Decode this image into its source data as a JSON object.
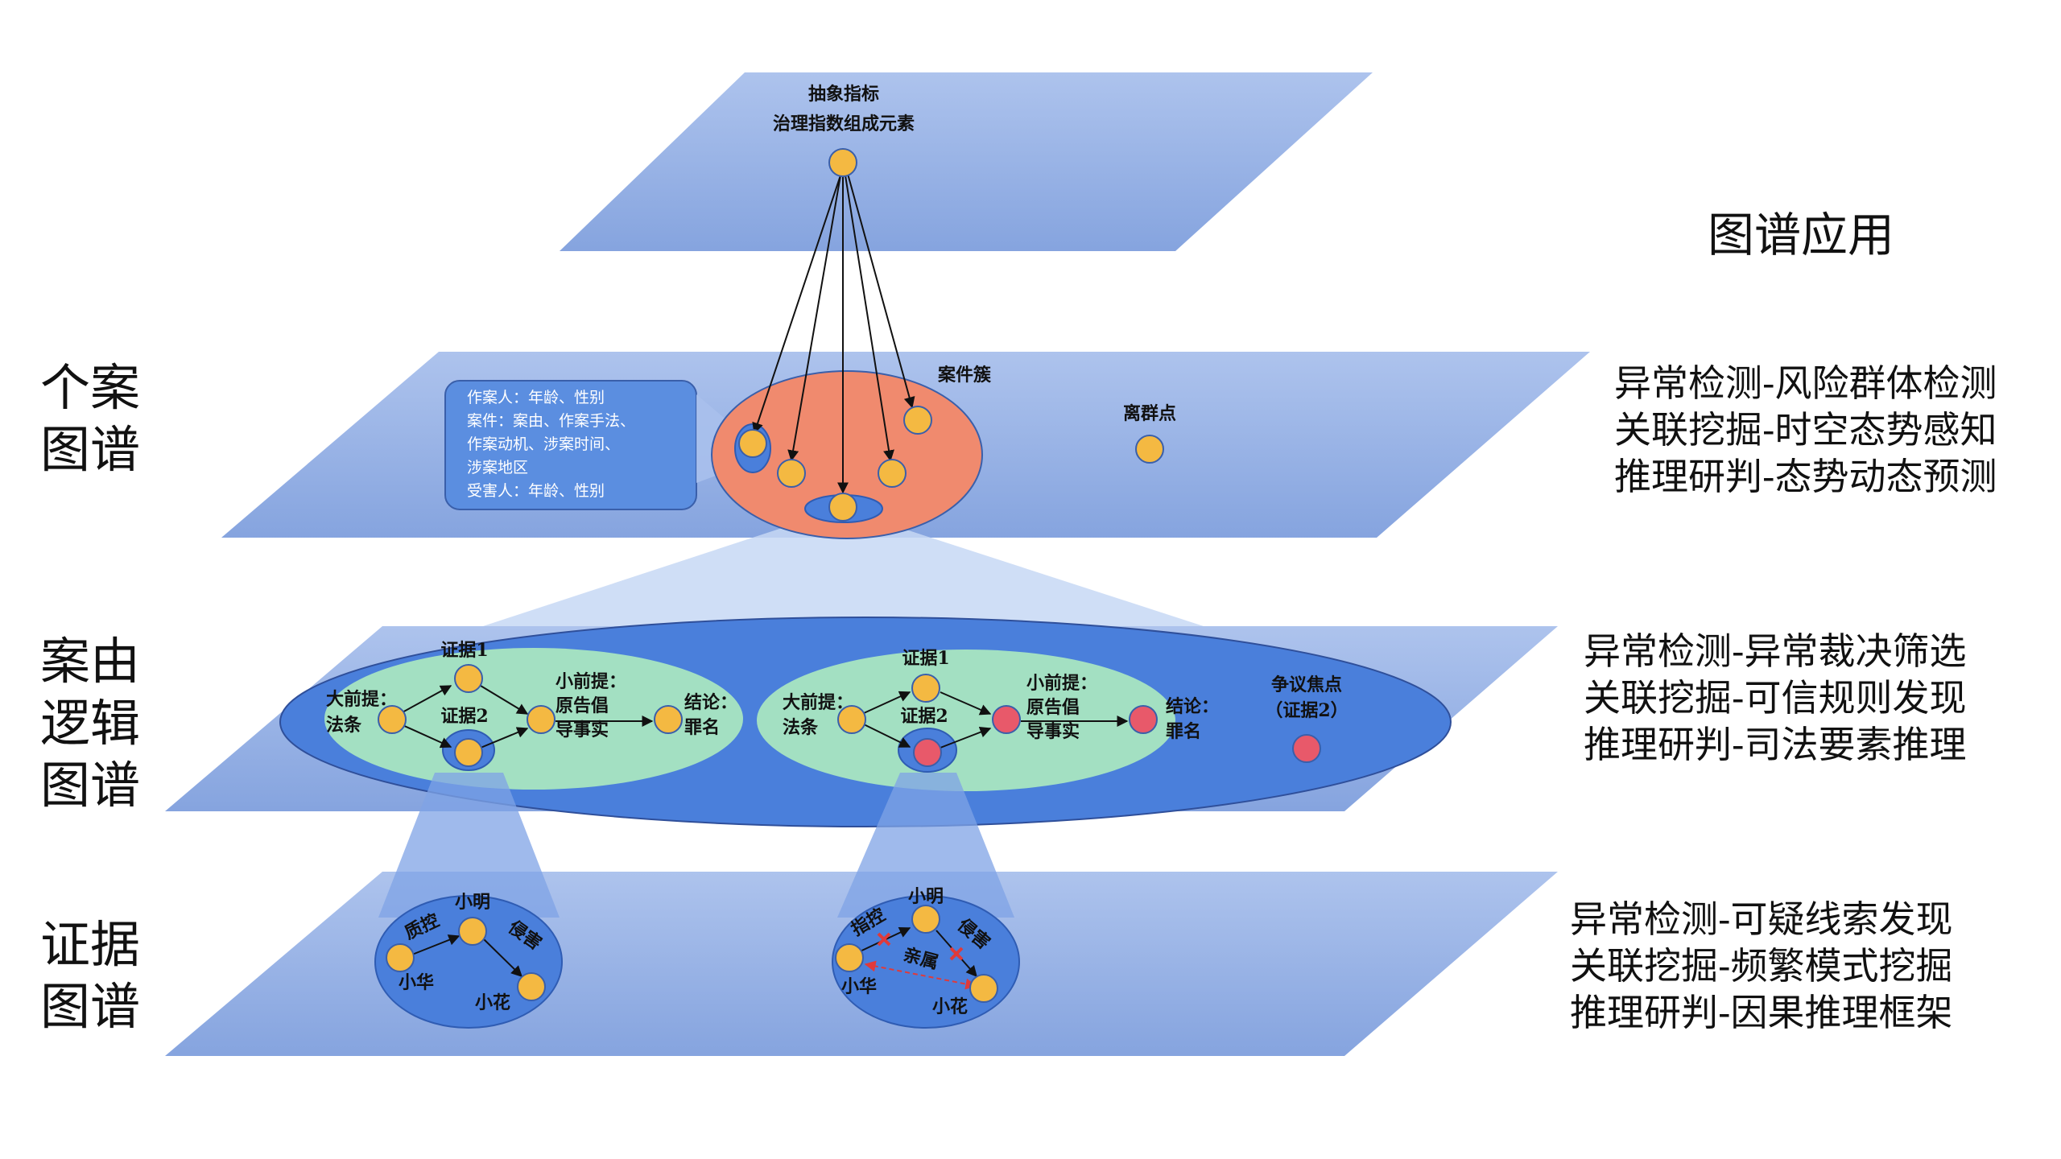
{
  "title": "图谱应用",
  "layer_labels": {
    "case": [
      "个案",
      "图谱"
    ],
    "logic": [
      "案由",
      "逻辑",
      "图谱"
    ],
    "evidence": [
      "证据",
      "图谱"
    ]
  },
  "top_layer": {
    "line1": "抽象指标",
    "line2": "治理指数组成元素"
  },
  "case_layer": {
    "cluster_label": "案件簇",
    "outlier_label": "离群点",
    "info_lines": [
      "作案人：年龄、性别",
      "案件：案由、作案手法、",
      "作案动机、涉案时间、",
      "涉案地区",
      "受害人：年龄、性别"
    ]
  },
  "logic_layer": {
    "left": {
      "evidence1": "证据1",
      "evidence2": "证据2",
      "major_premise": [
        "大前提：",
        "法条"
      ],
      "minor_premise": [
        "小前提：",
        "原告倡",
        "导事实"
      ],
      "conclusion": [
        "结论：",
        "罪名"
      ]
    },
    "right": {
      "evidence1": "证据1",
      "evidence2": "证据2",
      "major_premise": [
        "大前提：",
        "法条"
      ],
      "minor_premise": [
        "小前提：",
        "原告倡",
        "导事实"
      ],
      "conclusion": [
        "结论：",
        "罪名"
      ]
    },
    "dispute": [
      "争议焦点",
      "（证据2）"
    ]
  },
  "evidence_layer": {
    "left": {
      "a": "小明",
      "b": "小华",
      "c": "小花",
      "e1": "质控",
      "e2": "侵害"
    },
    "right": {
      "a": "小明",
      "b": "小华",
      "c": "小花",
      "e1": "指控",
      "e2": "侵害",
      "e3": "亲属"
    }
  },
  "applications": {
    "case": [
      "异常检测-风险群体检测",
      "关联挖掘-时空态势感知",
      "推理研判-态势动态预测"
    ],
    "logic": [
      "异常检测-异常裁决筛选",
      "关联挖掘-可信规则发现",
      "推理研判-司法要素推理"
    ],
    "evidence": [
      "异常检测-可疑线索发现",
      "关联挖掘-频繁模式挖掘",
      "推理研判-因果推理框架"
    ]
  },
  "colors": {
    "plane": "#8faadc",
    "node_orange": "#f4b942",
    "node_red": "#e8596a",
    "cluster": "#f08a6e",
    "logic_oval": "#4a7fdb",
    "green_oval": "#a8e6c1",
    "info_box": "#5b8ee0"
  }
}
